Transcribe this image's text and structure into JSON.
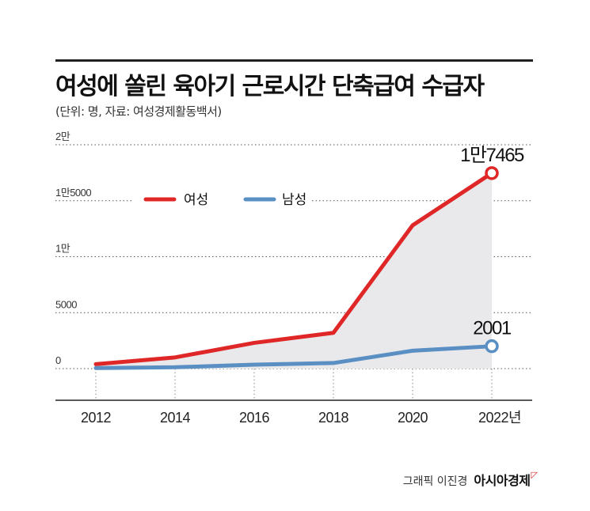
{
  "title": "여성에 쏠린 육아기 근로시간 단축급여 수급자",
  "subtitle": "(단위: 명, 자료: 여성경제활동백서)",
  "credit": {
    "byline": "그래픽 이진경",
    "brand": "아시아경제"
  },
  "chart_data": {
    "type": "line",
    "title": "여성에 쏠린 육아기 근로시간 단축급여 수급자",
    "subtitle": "(단위: 명, 자료: 여성경제활동백서)",
    "x": [
      "2012",
      "2014",
      "2016",
      "2018",
      "2020",
      "2022"
    ],
    "x_tick_labels": [
      "2012",
      "2014",
      "2016",
      "2018",
      "2020",
      "2022년"
    ],
    "y_tick_values": [
      0,
      5000,
      10000,
      15000,
      20000
    ],
    "y_tick_labels": [
      "0",
      "5000",
      "1만",
      "1만5000",
      "2만"
    ],
    "ylim": [
      0,
      20000
    ],
    "grid": "horizontal dotted",
    "legend_position": "top-left",
    "series": [
      {
        "name": "여성",
        "color": "#e02727",
        "values": [
          400,
          1000,
          2300,
          3200,
          12800,
          17465
        ],
        "end_label": "1만7465"
      },
      {
        "name": "남성",
        "color": "#5a8fc4",
        "values": [
          50,
          120,
          350,
          500,
          1600,
          2001
        ],
        "end_label": "2001"
      }
    ]
  }
}
